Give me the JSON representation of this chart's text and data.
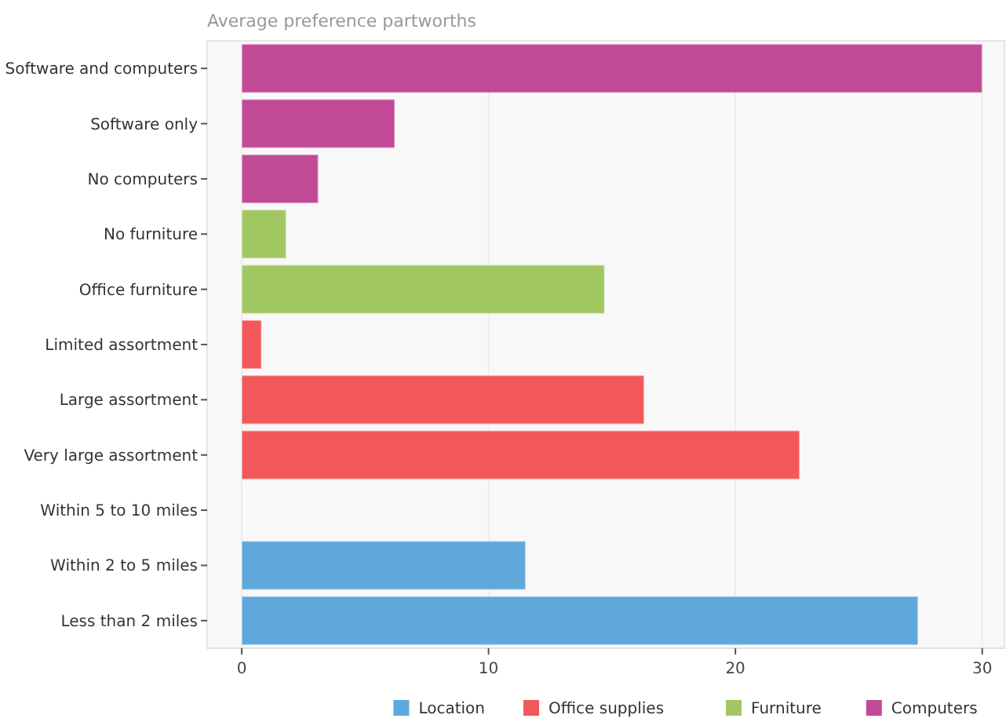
{
  "chart_data": {
    "type": "bar",
    "orientation": "horizontal",
    "title": "Average preference partworths",
    "categories": [
      "Software and computers",
      "Software only",
      "No computers",
      "No furniture",
      "Office furniture",
      "Limited assortment",
      "Large assortment",
      "Very large assortment",
      "Within 5 to 10 miles",
      "Within 2 to 5 miles",
      "Less than 2 miles"
    ],
    "series": [
      {
        "name": "Location",
        "color": "#5fa8dc",
        "values": [
          null,
          null,
          null,
          null,
          null,
          null,
          null,
          null,
          0,
          11.5,
          27.4
        ]
      },
      {
        "name": "Office supplies",
        "color": "#f2575a",
        "values": [
          null,
          null,
          null,
          null,
          null,
          0.8,
          16.3,
          22.6,
          null,
          null,
          null
        ]
      },
      {
        "name": "Furniture",
        "color": "#a0c762",
        "values": [
          null,
          null,
          null,
          1.8,
          14.7,
          null,
          null,
          null,
          null,
          null,
          null
        ]
      },
      {
        "name": "Computers",
        "color": "#c14a96",
        "values": [
          30.0,
          6.2,
          3.1,
          null,
          null,
          null,
          null,
          null,
          null,
          null,
          null
        ]
      }
    ],
    "xlim": [
      -1.4,
      30.9
    ],
    "xticks": [
      0,
      10,
      20,
      30
    ],
    "grid": "x",
    "legend": "bottom"
  }
}
